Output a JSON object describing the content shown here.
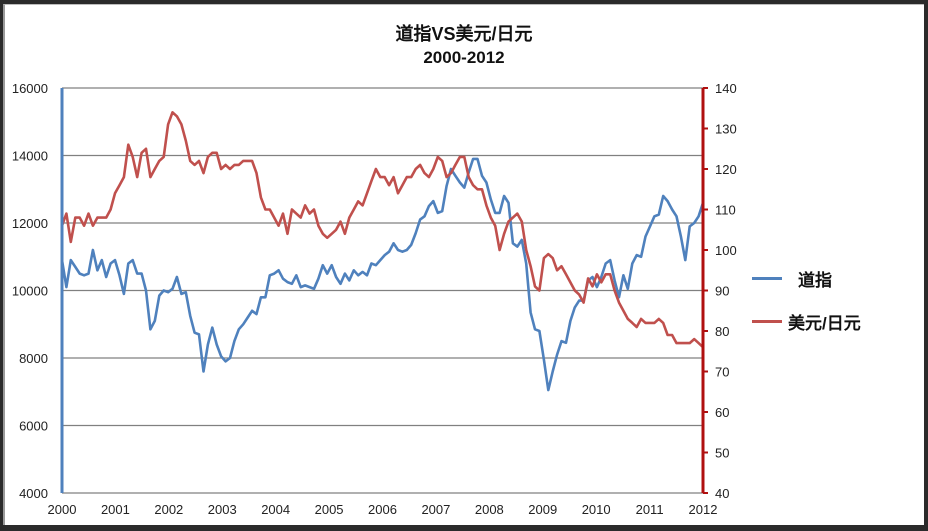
{
  "chart_data": {
    "type": "line",
    "title": "道指VS美元/日元",
    "subtitle": "2000-2012",
    "xlabel": "",
    "ylabel_left": "",
    "ylabel_right": "",
    "x_ticks": [
      "2000",
      "2001",
      "2002",
      "2003",
      "2004",
      "2005",
      "2006",
      "2007",
      "2008",
      "2009",
      "2010",
      "2011",
      "2012"
    ],
    "y_left_ticks": [
      4000,
      6000,
      8000,
      10000,
      12000,
      14000,
      16000
    ],
    "y_left_range": [
      4000,
      16000
    ],
    "y_right_ticks": [
      40,
      50,
      60,
      70,
      80,
      90,
      100,
      110,
      120,
      130,
      140
    ],
    "y_right_range": [
      40,
      140
    ],
    "grid": true,
    "legend_position": "right",
    "series": [
      {
        "name": "道指",
        "axis": "left",
        "color": "#4f81bd",
        "x_start": 2000.0,
        "x_step": 0.0833,
        "values": [
          10900,
          10100,
          10900,
          10700,
          10500,
          10450,
          10500,
          11200,
          10600,
          10900,
          10400,
          10800,
          10900,
          10450,
          9900,
          10800,
          10900,
          10500,
          10500,
          10000,
          8850,
          9100,
          9850,
          10000,
          9950,
          10050,
          10400,
          9900,
          9950,
          9250,
          8750,
          8700,
          7600,
          8400,
          8900,
          8400,
          8050,
          7900,
          8000,
          8500,
          8850,
          9000,
          9200,
          9400,
          9300,
          9800,
          9800,
          10450,
          10500,
          10600,
          10350,
          10250,
          10200,
          10450,
          10100,
          10150,
          10100,
          10050,
          10350,
          10750,
          10500,
          10750,
          10400,
          10200,
          10500,
          10300,
          10600,
          10450,
          10550,
          10450,
          10800,
          10750,
          10900,
          11050,
          11150,
          11400,
          11200,
          11150,
          11200,
          11350,
          11700,
          12100,
          12200,
          12500,
          12650,
          12300,
          12350,
          13100,
          13600,
          13400,
          13200,
          13050,
          13500,
          13900,
          13900,
          13400,
          13200,
          12700,
          12300,
          12300,
          12800,
          12600,
          11400,
          11300,
          11500,
          10800,
          9350,
          8850,
          8800,
          7950,
          7050,
          7600,
          8100,
          8500,
          8450,
          9100,
          9500,
          9700,
          9700,
          10300,
          10400,
          10100,
          10400,
          10800,
          10900,
          10300,
          9800,
          10450,
          10050,
          10800,
          11050,
          11000,
          11600,
          11900,
          12200,
          12250,
          12800,
          12650,
          12400,
          12200,
          11600,
          10900,
          11900,
          12000,
          12200,
          12600
        ]
      },
      {
        "name": "美元/日元",
        "axis": "right",
        "color": "#c0504d",
        "x_start": 2000.0,
        "x_step": 0.0833,
        "values": [
          106,
          109,
          102,
          108,
          108,
          106,
          109,
          106,
          108,
          108,
          108,
          110,
          114,
          116,
          118,
          126,
          123,
          118,
          124,
          125,
          118,
          120,
          122,
          123,
          131,
          134,
          133,
          131,
          127,
          122,
          121,
          122,
          119,
          123,
          124,
          124,
          120,
          121,
          120,
          121,
          121,
          122,
          122,
          122,
          119,
          113,
          110,
          110,
          108,
          106,
          109,
          104,
          110,
          109,
          108,
          111,
          109,
          110,
          106,
          104,
          103,
          104,
          105,
          107,
          104,
          108,
          110,
          112,
          111,
          114,
          117,
          120,
          118,
          118,
          116,
          118,
          114,
          116,
          118,
          118,
          120,
          121,
          119,
          118,
          120,
          123,
          122,
          118,
          119,
          121,
          123,
          123,
          118,
          116,
          115,
          115,
          111,
          108,
          106,
          100,
          104,
          107,
          108,
          109,
          107,
          100,
          96,
          91,
          90,
          98,
          99,
          98,
          95,
          96,
          94,
          92,
          90,
          89,
          87,
          93,
          91,
          94,
          92,
          94,
          94,
          90,
          87,
          85,
          83,
          82,
          81,
          83,
          82,
          82,
          82,
          83,
          82,
          79,
          79,
          77,
          77,
          77,
          77,
          78,
          77,
          76
        ]
      }
    ]
  },
  "legend": {
    "items": [
      {
        "label": "道指",
        "color": "#4f81bd"
      },
      {
        "label": "美元/日元",
        "color": "#c0504d"
      }
    ]
  },
  "colors": {
    "left_axis": "#4f81bd",
    "right_axis": "#b01010",
    "grid": "#808080"
  }
}
